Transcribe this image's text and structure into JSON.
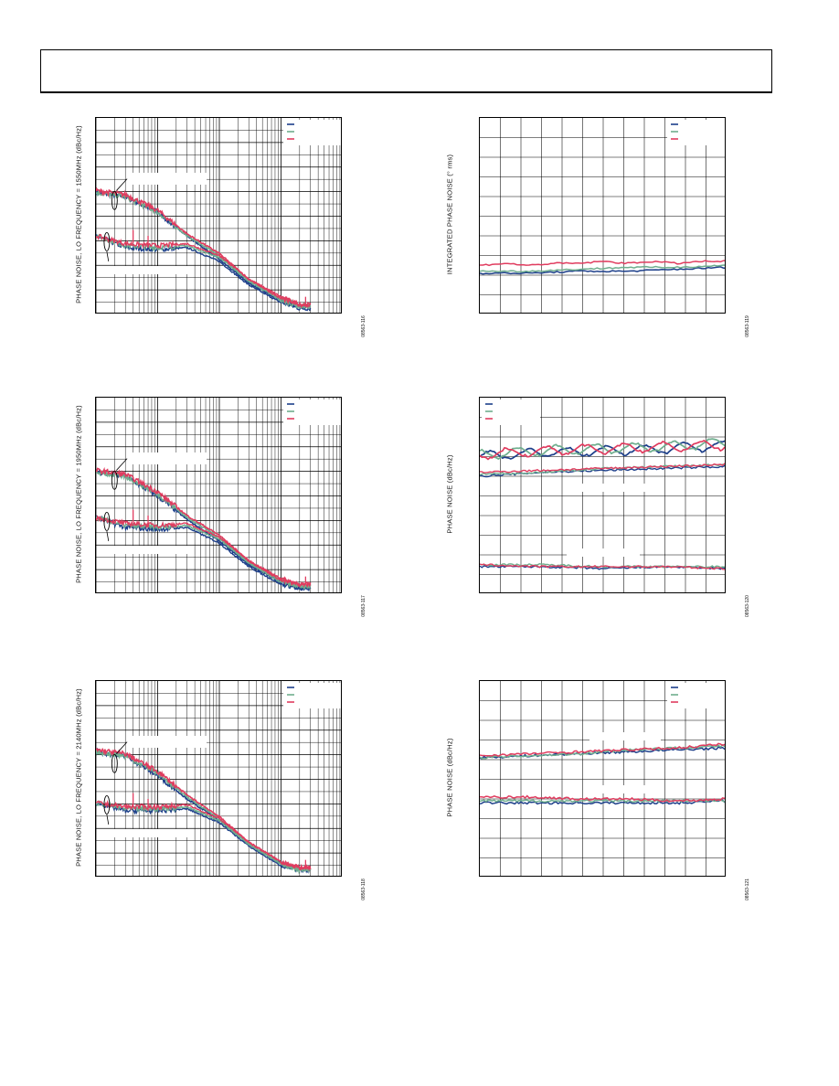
{
  "colors": {
    "blue": "#1d3f8a",
    "green": "#6fae8e",
    "red": "#e03c5f"
  },
  "chart_data": [
    {
      "id": "c1",
      "type": "line",
      "xscale": "log",
      "ylabel": "PHASE NOISE, LO FREQUENCY = 1550MHz (dBc/Hz)",
      "figure_id": "08563-116",
      "series": [
        {
          "color": "blue",
          "upper": [
            [
              10,
              0.62
            ],
            [
              30,
              0.6
            ],
            [
              100,
              0.52
            ],
            [
              300,
              0.4
            ],
            [
              1000,
              0.28
            ],
            [
              3000,
              0.16
            ],
            [
              10000,
              0.07
            ],
            [
              20000,
              0.04
            ],
            [
              30000,
              0.04
            ]
          ],
          "lower": [
            [
              10,
              0.4
            ],
            [
              30,
              0.34
            ],
            [
              100,
              0.33
            ],
            [
              300,
              0.34
            ],
            [
              1000,
              0.27
            ],
            [
              3000,
              0.15
            ],
            [
              10000,
              0.06
            ],
            [
              20000,
              0.03
            ],
            [
              30000,
              0.03
            ]
          ]
        },
        {
          "color": "green",
          "upper": [
            [
              10,
              0.62
            ],
            [
              30,
              0.6
            ],
            [
              100,
              0.52
            ],
            [
              300,
              0.4
            ],
            [
              1000,
              0.3
            ],
            [
              3000,
              0.17
            ],
            [
              10000,
              0.08
            ],
            [
              20000,
              0.05
            ],
            [
              30000,
              0.05
            ]
          ],
          "lower": [
            [
              10,
              0.4
            ],
            [
              30,
              0.35
            ],
            [
              100,
              0.34
            ],
            [
              300,
              0.35
            ],
            [
              1000,
              0.29
            ],
            [
              3000,
              0.17
            ],
            [
              10000,
              0.07
            ],
            [
              20000,
              0.04
            ],
            [
              30000,
              0.04
            ]
          ]
        },
        {
          "color": "red",
          "upper": [
            [
              10,
              0.63
            ],
            [
              30,
              0.61
            ],
            [
              100,
              0.53
            ],
            [
              300,
              0.41
            ],
            [
              1000,
              0.31
            ],
            [
              3000,
              0.18
            ],
            [
              10000,
              0.09
            ],
            [
              20000,
              0.05
            ],
            [
              30000,
              0.05
            ]
          ],
          "lower": [
            [
              10,
              0.4
            ],
            [
              30,
              0.36
            ],
            [
              100,
              0.35
            ],
            [
              300,
              0.36
            ],
            [
              1000,
              0.3
            ],
            [
              3000,
              0.18
            ],
            [
              10000,
              0.08
            ],
            [
              20000,
              0.05
            ],
            [
              30000,
              0.05
            ]
          ]
        }
      ]
    },
    {
      "id": "c2",
      "type": "line",
      "xscale": "log",
      "ylabel": "PHASE NOISE, LO FREQUENCY = 1950MHz (dBc/Hz)",
      "figure_id": "08563-117",
      "series": [
        {
          "color": "blue",
          "upper": [
            [
              10,
              0.62
            ],
            [
              30,
              0.6
            ],
            [
              100,
              0.5
            ],
            [
              300,
              0.38
            ],
            [
              1000,
              0.27
            ],
            [
              3000,
              0.15
            ],
            [
              10000,
              0.06
            ],
            [
              20000,
              0.03
            ],
            [
              30000,
              0.03
            ]
          ],
          "lower": [
            [
              10,
              0.39
            ],
            [
              30,
              0.34
            ],
            [
              100,
              0.33
            ],
            [
              300,
              0.34
            ],
            [
              1000,
              0.26
            ],
            [
              3000,
              0.14
            ],
            [
              10000,
              0.05
            ],
            [
              20000,
              0.03
            ],
            [
              30000,
              0.03
            ]
          ]
        },
        {
          "color": "green",
          "upper": [
            [
              10,
              0.62
            ],
            [
              30,
              0.6
            ],
            [
              100,
              0.51
            ],
            [
              300,
              0.39
            ],
            [
              1000,
              0.29
            ],
            [
              3000,
              0.16
            ],
            [
              10000,
              0.07
            ],
            [
              20000,
              0.04
            ],
            [
              30000,
              0.04
            ]
          ],
          "lower": [
            [
              10,
              0.39
            ],
            [
              30,
              0.35
            ],
            [
              100,
              0.34
            ],
            [
              300,
              0.35
            ],
            [
              1000,
              0.28
            ],
            [
              3000,
              0.16
            ],
            [
              10000,
              0.06
            ],
            [
              20000,
              0.04
            ],
            [
              30000,
              0.04
            ]
          ]
        },
        {
          "color": "red",
          "upper": [
            [
              10,
              0.63
            ],
            [
              30,
              0.61
            ],
            [
              100,
              0.52
            ],
            [
              300,
              0.4
            ],
            [
              1000,
              0.3
            ],
            [
              3000,
              0.17
            ],
            [
              10000,
              0.08
            ],
            [
              20000,
              0.05
            ],
            [
              30000,
              0.05
            ]
          ],
          "lower": [
            [
              10,
              0.39
            ],
            [
              30,
              0.36
            ],
            [
              100,
              0.35
            ],
            [
              300,
              0.36
            ],
            [
              1000,
              0.29
            ],
            [
              3000,
              0.17
            ],
            [
              10000,
              0.07
            ],
            [
              20000,
              0.05
            ],
            [
              30000,
              0.05
            ]
          ]
        }
      ]
    },
    {
      "id": "c3",
      "type": "line",
      "xscale": "log",
      "ylabel": "PHASE NOISE, LO FREQUENCY = 2140MHz (dBc/Hz)",
      "figure_id": "08563-118",
      "series": [
        {
          "color": "blue",
          "upper": [
            [
              10,
              0.64
            ],
            [
              30,
              0.62
            ],
            [
              100,
              0.52
            ],
            [
              300,
              0.4
            ],
            [
              1000,
              0.29
            ],
            [
              3000,
              0.17
            ],
            [
              10000,
              0.07
            ],
            [
              20000,
              0.04
            ],
            [
              30000,
              0.04
            ]
          ],
          "lower": [
            [
              10,
              0.38
            ],
            [
              30,
              0.34
            ],
            [
              100,
              0.34
            ],
            [
              300,
              0.35
            ],
            [
              1000,
              0.28
            ],
            [
              3000,
              0.16
            ],
            [
              10000,
              0.06
            ],
            [
              20000,
              0.04
            ],
            [
              30000,
              0.04
            ]
          ]
        },
        {
          "color": "green",
          "upper": [
            [
              10,
              0.64
            ],
            [
              30,
              0.62
            ],
            [
              100,
              0.53
            ],
            [
              300,
              0.41
            ],
            [
              1000,
              0.3
            ],
            [
              3000,
              0.17
            ],
            [
              10000,
              0.07
            ],
            [
              20000,
              0.04
            ],
            [
              30000,
              0.04
            ]
          ],
          "lower": [
            [
              10,
              0.38
            ],
            [
              30,
              0.35
            ],
            [
              100,
              0.35
            ],
            [
              300,
              0.36
            ],
            [
              1000,
              0.29
            ],
            [
              3000,
              0.17
            ],
            [
              10000,
              0.07
            ],
            [
              20000,
              0.04
            ],
            [
              30000,
              0.04
            ]
          ]
        },
        {
          "color": "red",
          "upper": [
            [
              10,
              0.65
            ],
            [
              30,
              0.63
            ],
            [
              100,
              0.54
            ],
            [
              300,
              0.42
            ],
            [
              1000,
              0.31
            ],
            [
              3000,
              0.18
            ],
            [
              10000,
              0.08
            ],
            [
              20000,
              0.05
            ],
            [
              30000,
              0.05
            ]
          ],
          "lower": [
            [
              10,
              0.38
            ],
            [
              30,
              0.36
            ],
            [
              100,
              0.36
            ],
            [
              300,
              0.37
            ],
            [
              1000,
              0.3
            ],
            [
              3000,
              0.18
            ],
            [
              10000,
              0.08
            ],
            [
              20000,
              0.05
            ],
            [
              30000,
              0.05
            ]
          ]
        }
      ]
    },
    {
      "id": "c4",
      "type": "line",
      "xscale": "linear",
      "ylabel": "INTEGRATED PHASE NOISE (° rms)",
      "figure_id": "08563-119",
      "series": [
        {
          "color": "blue",
          "points": [
            [
              0,
              0.21
            ],
            [
              0.2,
              0.21
            ],
            [
              0.4,
              0.22
            ],
            [
              0.6,
              0.22
            ],
            [
              0.8,
              0.23
            ],
            [
              1,
              0.24
            ]
          ]
        },
        {
          "color": "green",
          "points": [
            [
              0,
              0.22
            ],
            [
              0.2,
              0.22
            ],
            [
              0.4,
              0.23
            ],
            [
              0.6,
              0.24
            ],
            [
              0.8,
              0.24
            ],
            [
              1,
              0.25
            ]
          ]
        },
        {
          "color": "red",
          "points": [
            [
              0,
              0.25
            ],
            [
              0.1,
              0.26
            ],
            [
              0.2,
              0.25
            ],
            [
              0.3,
              0.26
            ],
            [
              0.4,
              0.26
            ],
            [
              0.5,
              0.27
            ],
            [
              0.6,
              0.26
            ],
            [
              0.7,
              0.27
            ],
            [
              0.8,
              0.26
            ],
            [
              0.9,
              0.27
            ],
            [
              1,
              0.27
            ]
          ]
        }
      ]
    },
    {
      "id": "c5",
      "type": "line",
      "xscale": "linear",
      "ylabel": "PHASE NOISE (dBc/Hz)",
      "figure_id": "08563-120",
      "series": [
        {
          "color": "blue",
          "wavy": [
            0.7,
            0.72,
            0.73,
            0.74,
            0.76
          ],
          "flat": [
            0.6,
            0.62,
            0.63,
            0.64,
            0.65
          ],
          "low": [
            0.14,
            0.14,
            0.13,
            0.14,
            0.13
          ]
        },
        {
          "color": "green",
          "wavy": [
            0.71,
            0.73,
            0.74,
            0.75,
            0.77
          ],
          "flat": [
            0.61,
            0.62,
            0.64,
            0.65,
            0.66
          ],
          "low": [
            0.15,
            0.15,
            0.14,
            0.14,
            0.14
          ]
        },
        {
          "color": "red",
          "wavy": [
            0.71,
            0.73,
            0.74,
            0.75,
            0.76
          ],
          "flat": [
            0.62,
            0.63,
            0.64,
            0.65,
            0.66
          ],
          "low": [
            0.15,
            0.14,
            0.14,
            0.14,
            0.13
          ]
        }
      ]
    },
    {
      "id": "c6",
      "type": "line",
      "xscale": "linear",
      "ylabel": "PHASE NOISE (dBc/Hz)",
      "figure_id": "08563-121",
      "series": [
        {
          "color": "blue",
          "upper": [
            0.61,
            0.62,
            0.63,
            0.64,
            0.65,
            0.66
          ],
          "lower": [
            0.38,
            0.38,
            0.38,
            0.38,
            0.38,
            0.39
          ]
        },
        {
          "color": "green",
          "upper": [
            0.61,
            0.62,
            0.63,
            0.65,
            0.66,
            0.67
          ],
          "lower": [
            0.39,
            0.39,
            0.39,
            0.39,
            0.39,
            0.39
          ]
        },
        {
          "color": "red",
          "upper": [
            0.62,
            0.63,
            0.64,
            0.65,
            0.66,
            0.68
          ],
          "lower": [
            0.41,
            0.41,
            0.4,
            0.4,
            0.39,
            0.4
          ]
        }
      ]
    }
  ]
}
